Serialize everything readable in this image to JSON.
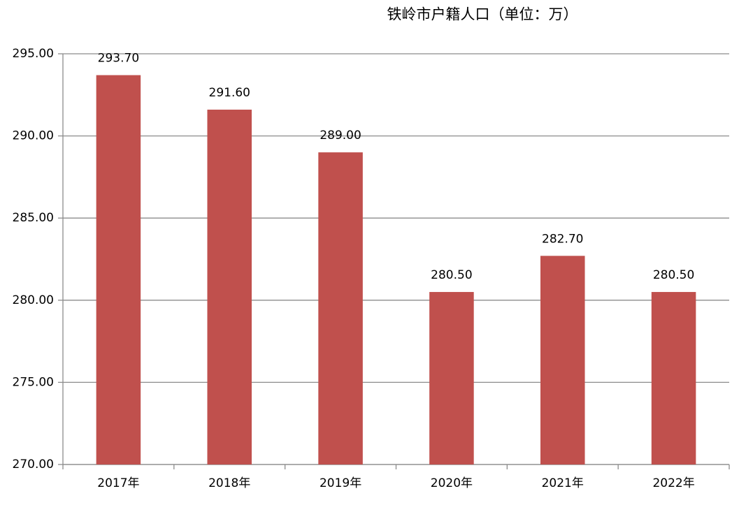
{
  "chart_data": {
    "type": "bar",
    "title": "铁岭市户籍人口（单位：万）",
    "categories": [
      "2017年",
      "2018年",
      "2019年",
      "2020年",
      "2021年",
      "2022年"
    ],
    "values": [
      293.7,
      291.6,
      289.0,
      280.5,
      282.7,
      280.5
    ],
    "value_labels": [
      "293.70",
      "291.60",
      "289.00",
      "280.50",
      "282.70",
      "280.50"
    ],
    "color": "#c0504d",
    "ylim": [
      270,
      295
    ],
    "yticks": [
      {
        "value": 270,
        "label": "270.00"
      },
      {
        "value": 275,
        "label": "275.00"
      },
      {
        "value": 280,
        "label": "280.00"
      },
      {
        "value": 285,
        "label": "285.00"
      },
      {
        "value": 290,
        "label": "290.00"
      },
      {
        "value": 295,
        "label": "295.00"
      }
    ],
    "grid": true
  }
}
